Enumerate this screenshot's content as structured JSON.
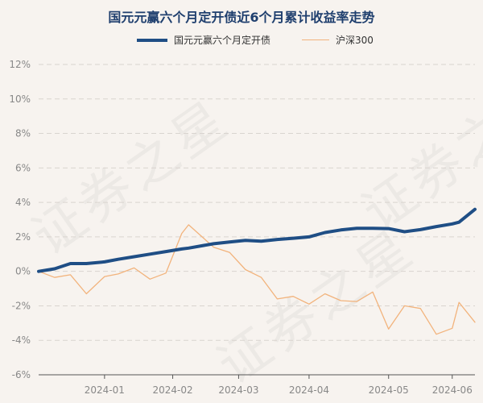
{
  "watermark": "证券之星",
  "chart_data": {
    "type": "line",
    "title": "国元元赢六个月定开债近6个月累计收益率走势",
    "xlabel": "",
    "ylabel": "",
    "ylim": [
      -6,
      12
    ],
    "yticks": [
      -6,
      -4,
      -2,
      0,
      2,
      4,
      6,
      8,
      10,
      12
    ],
    "ytick_labels": [
      "-6%",
      "-4%",
      "-2%",
      "0%",
      "2%",
      "4%",
      "6%",
      "8%",
      "10%",
      "12%"
    ],
    "xlim": [
      "2023-12-04",
      "2024-06-13"
    ],
    "xticks": [
      "2024-01-02",
      "2024-02-01",
      "2024-03-01",
      "2024-04-01",
      "2024-05-06",
      "2024-06-03"
    ],
    "xtick_labels": [
      "2024-01",
      "2024-02",
      "2024-03",
      "2024-04",
      "2024-05",
      "2024-06"
    ],
    "grid": true,
    "legend_position": "top",
    "series": [
      {
        "name": "国元元赢六个月定开债",
        "color": "#1f4e85",
        "line_width": "thick",
        "x": [
          "2023-12-04",
          "2023-12-11",
          "2023-12-18",
          "2023-12-25",
          "2024-01-02",
          "2024-01-08",
          "2024-01-15",
          "2024-01-22",
          "2024-01-29",
          "2024-02-05",
          "2024-02-08",
          "2024-02-19",
          "2024-02-26",
          "2024-03-04",
          "2024-03-11",
          "2024-03-18",
          "2024-03-25",
          "2024-04-01",
          "2024-04-08",
          "2024-04-15",
          "2024-04-22",
          "2024-04-29",
          "2024-05-06",
          "2024-05-13",
          "2024-05-20",
          "2024-05-27",
          "2024-06-03",
          "2024-06-06",
          "2024-06-13"
        ],
        "values": [
          0.0,
          0.15,
          0.45,
          0.45,
          0.55,
          0.7,
          0.85,
          1.0,
          1.15,
          1.3,
          1.35,
          1.6,
          1.7,
          1.8,
          1.75,
          1.85,
          1.92,
          2.0,
          2.25,
          2.4,
          2.5,
          2.5,
          2.48,
          2.3,
          2.42,
          2.6,
          2.75,
          2.85,
          3.6
        ]
      },
      {
        "name": "沪深300",
        "color": "#f2b37c",
        "line_width": "thin",
        "x": [
          "2023-12-04",
          "2023-12-11",
          "2023-12-18",
          "2023-12-25",
          "2024-01-02",
          "2024-01-08",
          "2024-01-15",
          "2024-01-22",
          "2024-01-29",
          "2024-02-05",
          "2024-02-08",
          "2024-02-19",
          "2024-02-26",
          "2024-03-04",
          "2024-03-11",
          "2024-03-18",
          "2024-03-25",
          "2024-04-01",
          "2024-04-08",
          "2024-04-15",
          "2024-04-22",
          "2024-04-29",
          "2024-05-06",
          "2024-05-13",
          "2024-05-20",
          "2024-05-27",
          "2024-06-03",
          "2024-06-06",
          "2024-06-13"
        ],
        "values": [
          0.0,
          -0.35,
          -0.2,
          -1.3,
          -0.3,
          -0.15,
          0.2,
          -0.45,
          -0.1,
          2.2,
          2.7,
          1.4,
          1.1,
          0.1,
          -0.35,
          -1.6,
          -1.45,
          -1.9,
          -1.3,
          -1.7,
          -1.75,
          -1.2,
          -3.35,
          -2.0,
          -2.15,
          -3.65,
          -3.3,
          -1.8,
          -2.95
        ]
      }
    ]
  }
}
